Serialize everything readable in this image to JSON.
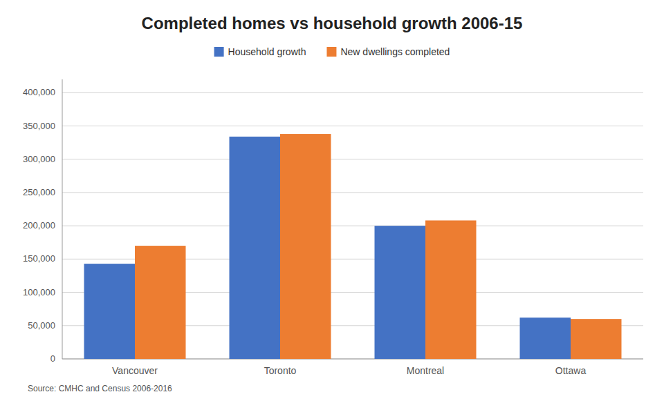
{
  "chart_data": {
    "type": "bar",
    "title": "Completed homes vs household growth 2006-15",
    "categories": [
      "Vancouver",
      "Toronto",
      "Montreal",
      "Ottawa"
    ],
    "series": [
      {
        "name": "Household growth",
        "color": "#4472C4",
        "values": [
          143000,
          334000,
          200000,
          62000
        ]
      },
      {
        "name": "New dwellings completed",
        "color": "#ED7D31",
        "values": [
          170000,
          338000,
          208000,
          60000
        ]
      }
    ],
    "ylim": [
      0,
      420000
    ],
    "yticks": [
      0,
      {
        "value": 50000,
        "label": "50,000"
      },
      {
        "value": 100000,
        "label": "100,000"
      },
      {
        "value": 150000,
        "label": "150,000"
      },
      {
        "value": 200000,
        "label": "200,000"
      },
      {
        "value": 250000,
        "label": "250,000"
      },
      {
        "value": 300000,
        "label": "300,000"
      },
      {
        "value": 350000,
        "label": "350,000"
      },
      {
        "value": 400000,
        "label": "400,000"
      }
    ],
    "grid": true,
    "legend": "top",
    "source": "Source: CMHC and Census 2006-2016"
  }
}
